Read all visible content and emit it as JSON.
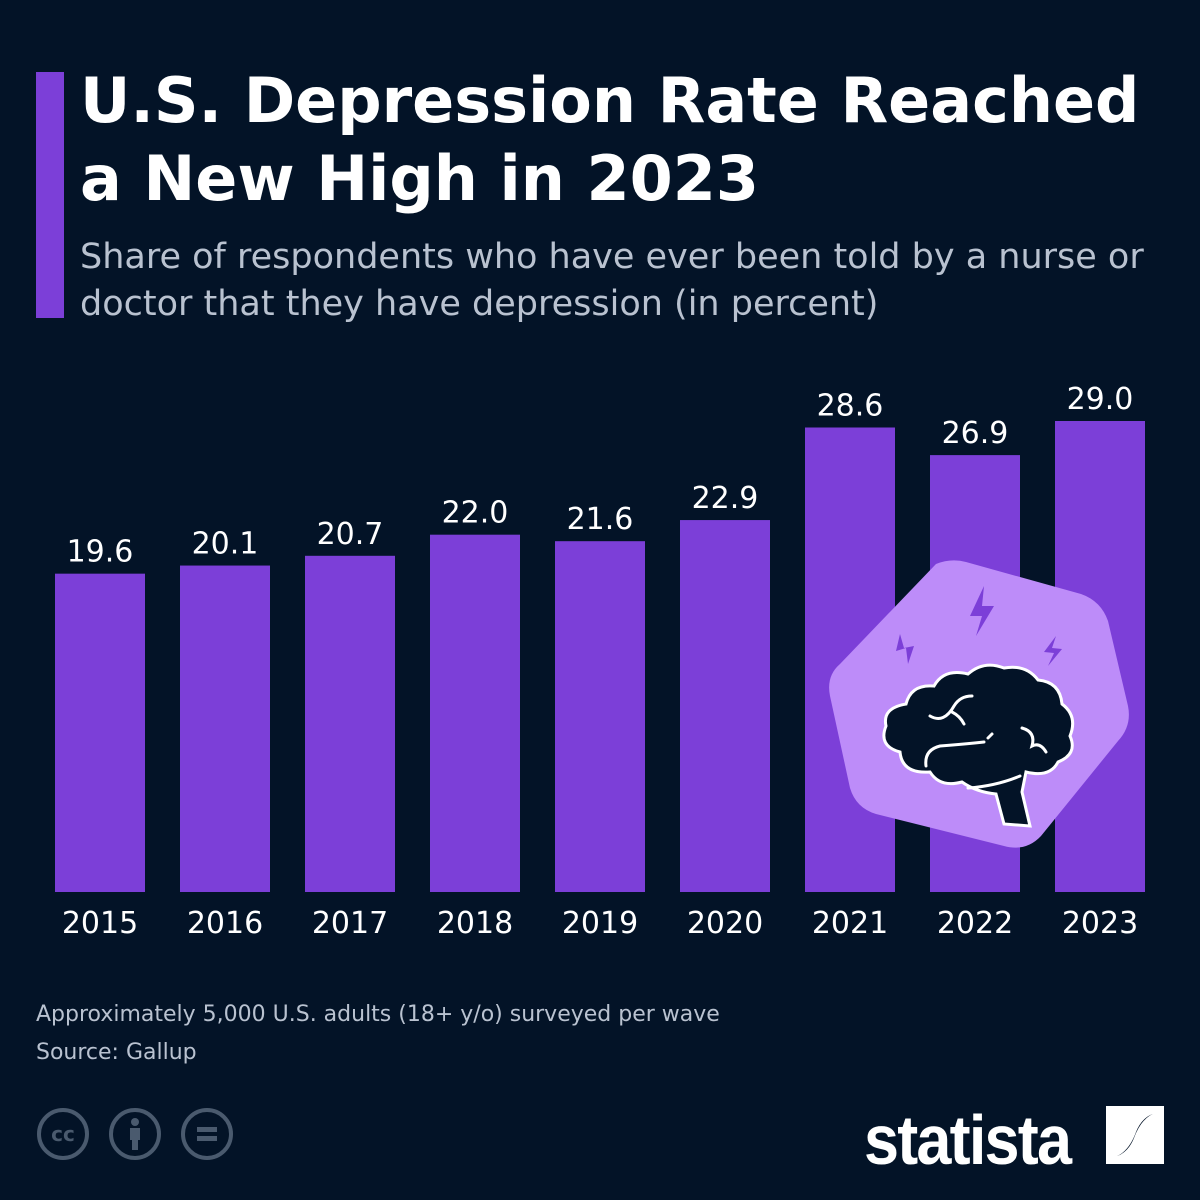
{
  "title": "U.S. Depression Rate Reached a New High in 2023",
  "subtitle": "Share of respondents who have ever been told by a nurse or doctor that they have depression (in percent)",
  "chart_data": {
    "type": "bar",
    "categories": [
      "2015",
      "2016",
      "2017",
      "2018",
      "2019",
      "2020",
      "2021",
      "2022",
      "2023"
    ],
    "values": [
      19.6,
      20.1,
      20.7,
      22.0,
      21.6,
      22.9,
      28.6,
      26.9,
      29.0
    ],
    "value_labels": [
      "19.6",
      "20.1",
      "20.7",
      "22.0",
      "21.6",
      "22.9",
      "28.6",
      "26.9",
      "29.0"
    ],
    "ylim": [
      0,
      29.0
    ],
    "grid": false,
    "bar_color": "#7c3fd8"
  },
  "illustration": "brain-with-lightning-icon",
  "footer": {
    "note": "Approximately 5,000 U.S. adults (18+ y/o) surveyed per wave",
    "source": "Source: Gallup",
    "license_icons": [
      "cc-icon",
      "attribution-icon",
      "no-derivatives-icon"
    ],
    "logo": "statista"
  },
  "colors": {
    "background": "#031327",
    "accent": "#7c3fd8",
    "illustration_bg": "#bd8cf9",
    "muted_text": "#b9c2d0"
  }
}
